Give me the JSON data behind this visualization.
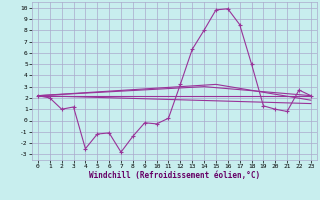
{
  "xlabel": "Windchill (Refroidissement éolien,°C)",
  "xlim": [
    -0.5,
    23.5
  ],
  "ylim": [
    -3.5,
    10.5
  ],
  "xticks": [
    0,
    1,
    2,
    3,
    4,
    5,
    6,
    7,
    8,
    9,
    10,
    11,
    12,
    13,
    14,
    15,
    16,
    17,
    18,
    19,
    20,
    21,
    22,
    23
  ],
  "yticks": [
    -3,
    -2,
    -1,
    0,
    1,
    2,
    3,
    4,
    5,
    6,
    7,
    8,
    9,
    10
  ],
  "bg_color": "#c8eeee",
  "line_color": "#993399",
  "grid_color": "#aaaacc",
  "series1_x": [
    0,
    1,
    2,
    3,
    4,
    5,
    6,
    7,
    8,
    9,
    10,
    11,
    12,
    13,
    14,
    15,
    16,
    17,
    18,
    19,
    20,
    21,
    22,
    23
  ],
  "series1_y": [
    2.2,
    2.0,
    1.0,
    1.2,
    -2.5,
    -1.2,
    -1.1,
    -2.8,
    -1.4,
    -0.2,
    -0.3,
    0.2,
    3.2,
    6.3,
    8.0,
    9.8,
    9.9,
    8.5,
    5.0,
    1.3,
    1.0,
    0.8,
    2.7,
    2.2
  ],
  "series2_x": [
    0,
    23
  ],
  "series2_y": [
    2.2,
    2.2
  ],
  "series3_x": [
    0,
    23
  ],
  "series3_y": [
    2.2,
    1.5
  ],
  "series4_x": [
    0,
    15,
    23
  ],
  "series4_y": [
    2.2,
    3.2,
    1.8
  ],
  "series5_x": [
    0,
    14,
    23
  ],
  "series5_y": [
    2.2,
    3.0,
    2.2
  ]
}
